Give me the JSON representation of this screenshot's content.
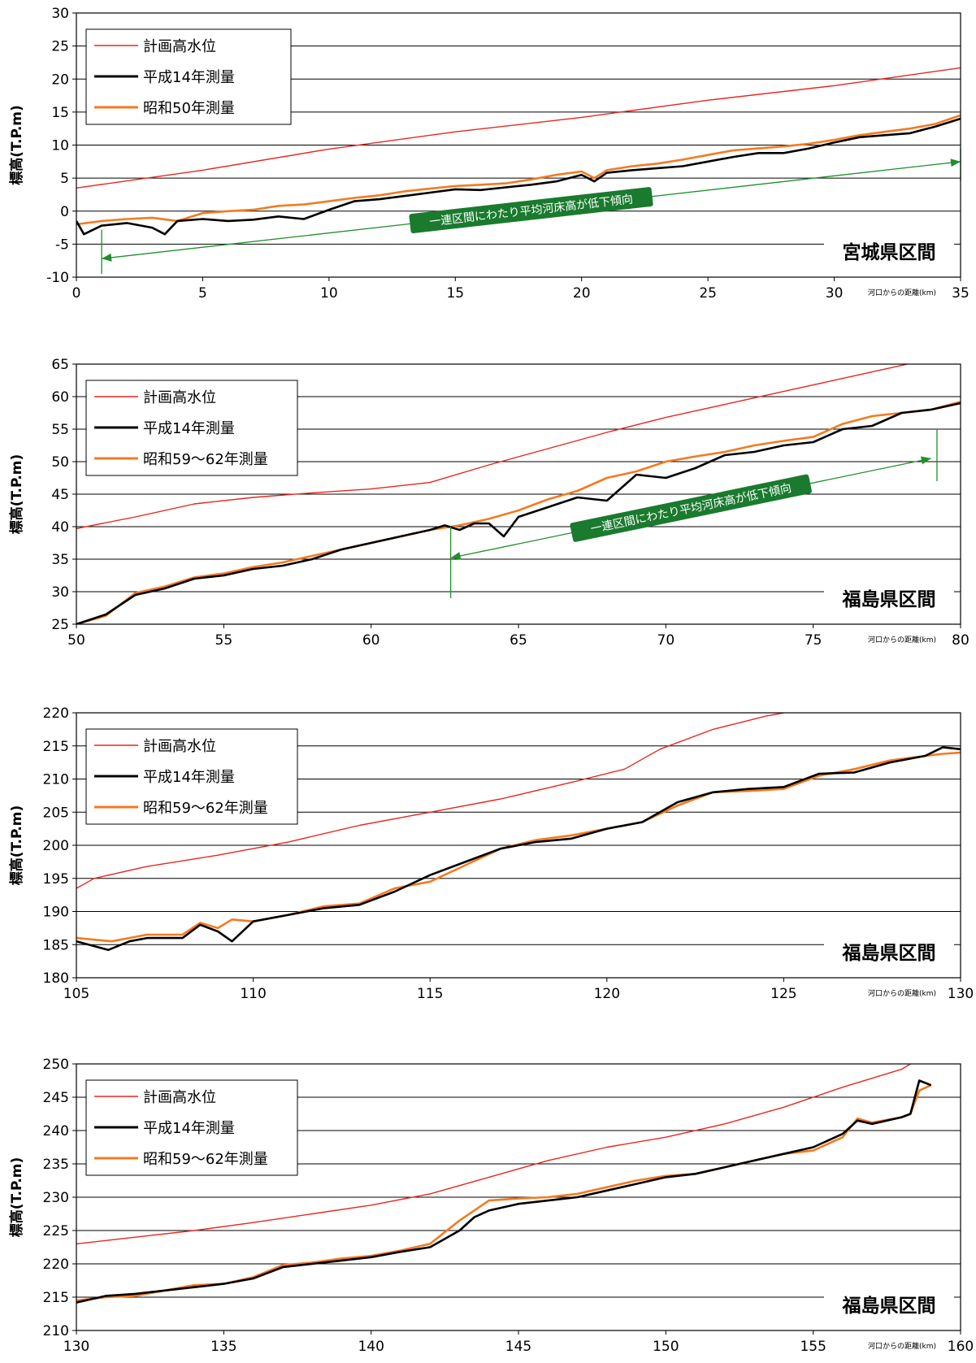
{
  "colors": {
    "plan": "#e8271f",
    "h14": "#000000",
    "old": "#f47a20",
    "arrow": "#1f8f2a",
    "annot_bg": "#1a7a2e"
  },
  "chart_data": [
    {
      "type": "line",
      "ylabel": "標高(T.P.m)",
      "xnote": "河口からの距離(km)",
      "xlim": [
        0,
        35
      ],
      "xticks": [
        0,
        5,
        10,
        15,
        20,
        25,
        30,
        35
      ],
      "ylim": [
        -10,
        30
      ],
      "yticks": [
        -10,
        -5,
        0,
        5,
        10,
        15,
        20,
        25,
        30
      ],
      "grid": "horizontal",
      "legend_position": "top-left",
      "region_label": "宮城県区間",
      "annotation": {
        "text": "一連区間にわたり平均河床高が低下傾向",
        "arrow_from": [
          35,
          7.5
        ],
        "arrow_to": [
          1,
          -7.2
        ],
        "markers": [
          1,
          35
        ]
      },
      "series": [
        {
          "name": "計画高水位",
          "key": "plan",
          "x": [
            0,
            5,
            10,
            15,
            20,
            25,
            30,
            35
          ],
          "y": [
            3.5,
            6.2,
            9.4,
            12.0,
            14.2,
            16.8,
            19.0,
            21.7
          ]
        },
        {
          "name": "平成14年測量",
          "key": "h14",
          "x": [
            0,
            0.3,
            1,
            2,
            3,
            3.5,
            4,
            5,
            6,
            7,
            8,
            9,
            10,
            11,
            12,
            13,
            14,
            15,
            16,
            17,
            18,
            19,
            20,
            20.5,
            21,
            22,
            23,
            24,
            25,
            26,
            27,
            28,
            29,
            30,
            31,
            32,
            33,
            34,
            35
          ],
          "y": [
            -1.5,
            -3.5,
            -2.2,
            -1.8,
            -2.5,
            -3.5,
            -1.5,
            -1.2,
            -1.5,
            -1.3,
            -0.8,
            -1.2,
            0.2,
            1.5,
            1.8,
            2.3,
            2.8,
            3.3,
            3.2,
            3.6,
            4.0,
            4.5,
            5.5,
            4.5,
            5.8,
            6.2,
            6.5,
            6.8,
            7.5,
            8.2,
            8.8,
            8.8,
            9.5,
            10.4,
            11.2,
            11.5,
            11.8,
            12.8,
            14.0
          ]
        },
        {
          "name": "昭和50年測量",
          "key": "old",
          "x": [
            0,
            1,
            2,
            3,
            4,
            5,
            6,
            7,
            8,
            9,
            10,
            11,
            12,
            13,
            14,
            15,
            16,
            17,
            18,
            19,
            20,
            20.5,
            21,
            22,
            23,
            24,
            25,
            26,
            27,
            28,
            29,
            30,
            31,
            32,
            33,
            34,
            35
          ],
          "y": [
            -2.0,
            -1.5,
            -1.2,
            -1.0,
            -1.5,
            -0.3,
            0.0,
            0.2,
            0.8,
            1.0,
            1.5,
            2.0,
            2.4,
            3.0,
            3.4,
            3.8,
            4.0,
            4.2,
            4.8,
            5.5,
            6.0,
            5.0,
            6.2,
            6.8,
            7.2,
            7.8,
            8.5,
            9.2,
            9.5,
            9.8,
            10.2,
            10.8,
            11.5,
            12.0,
            12.5,
            13.2,
            14.5
          ]
        }
      ]
    },
    {
      "type": "line",
      "ylabel": "標高(T.P.m)",
      "xnote": "河口からの距離(km)",
      "xlim": [
        50,
        80
      ],
      "xticks": [
        50,
        55,
        60,
        65,
        70,
        75,
        80
      ],
      "ylim": [
        25,
        65
      ],
      "yticks": [
        25,
        30,
        35,
        40,
        45,
        50,
        55,
        60,
        65
      ],
      "grid": "horizontal",
      "legend_position": "top-left",
      "region_label": "福島県区間",
      "annotation": {
        "text": "一連区間にわたり平均河床高が低下傾向",
        "arrow_from": [
          79,
          50.5
        ],
        "arrow_to": [
          62.7,
          35.2
        ],
        "markers": [
          62.7,
          79.2
        ]
      },
      "series": [
        {
          "name": "計画高水位",
          "key": "plan",
          "x": [
            50,
            52,
            54,
            56,
            58,
            60,
            62,
            64,
            66,
            68,
            70,
            72,
            74,
            76,
            78,
            78.2
          ],
          "y": [
            39.7,
            41.5,
            43.5,
            44.5,
            45.2,
            45.8,
            46.8,
            49.5,
            52.0,
            54.5,
            56.8,
            58.8,
            60.8,
            62.8,
            64.8,
            65.0
          ]
        },
        {
          "name": "平成14年測量",
          "key": "h14",
          "x": [
            50,
            51,
            52,
            53,
            54,
            55,
            56,
            57,
            58,
            59,
            60,
            61,
            62,
            62.5,
            63,
            63.5,
            64,
            64.5,
            65,
            66,
            67,
            68,
            69,
            70,
            71,
            72,
            73,
            74,
            75,
            76,
            77,
            78,
            79,
            80
          ],
          "y": [
            25.0,
            26.5,
            29.5,
            30.5,
            32.0,
            32.5,
            33.5,
            34.0,
            35.0,
            36.5,
            37.5,
            38.5,
            39.5,
            40.2,
            39.5,
            40.5,
            40.5,
            38.5,
            41.5,
            43.0,
            44.5,
            44.0,
            48.0,
            47.5,
            49.0,
            51.0,
            51.5,
            52.5,
            53.0,
            55.0,
            55.5,
            57.5,
            58.0,
            59.0
          ]
        },
        {
          "name": "昭和59〜62年測量",
          "key": "old",
          "x": [
            50,
            51,
            52,
            53,
            54,
            55,
            56,
            57,
            58,
            59,
            60,
            61,
            62,
            63,
            64,
            65,
            66,
            67,
            68,
            69,
            70,
            71,
            72,
            73,
            74,
            75,
            76,
            77,
            78,
            79,
            80
          ],
          "y": [
            25.0,
            26.3,
            29.8,
            30.8,
            32.2,
            32.8,
            33.8,
            34.5,
            35.5,
            36.5,
            37.5,
            38.5,
            39.5,
            40.2,
            41.2,
            42.5,
            44.2,
            45.5,
            47.5,
            48.5,
            50.0,
            50.8,
            51.5,
            52.5,
            53.2,
            53.8,
            55.8,
            57.0,
            57.5,
            58.0,
            59.2
          ]
        }
      ]
    },
    {
      "type": "line",
      "ylabel": "標高(T.P.m)",
      "xnote": "河口からの距離(km)",
      "xlim": [
        105,
        130
      ],
      "xticks": [
        105,
        110,
        115,
        120,
        125,
        130
      ],
      "ylim": [
        180,
        220
      ],
      "yticks": [
        180,
        185,
        190,
        195,
        200,
        205,
        210,
        215,
        220
      ],
      "grid": "horizontal",
      "legend_position": "top-left",
      "region_label": "福島県区間",
      "series": [
        {
          "name": "計画高水位",
          "key": "plan",
          "x": [
            105,
            105.5,
            107,
            109,
            111,
            113,
            115,
            117,
            119,
            120.5,
            121.5,
            123,
            124.5,
            125
          ],
          "y": [
            193.5,
            195.0,
            196.8,
            198.5,
            200.5,
            203.0,
            205.0,
            207.0,
            209.5,
            211.5,
            214.5,
            217.5,
            219.5,
            220.0
          ]
        },
        {
          "name": "平成14年測量",
          "key": "h14",
          "x": [
            105,
            105.9,
            106.5,
            107,
            108,
            108.5,
            109,
            109.4,
            110,
            111,
            112,
            113,
            114,
            115,
            116,
            117,
            118,
            119,
            120,
            121,
            122,
            123,
            124,
            125,
            126,
            127,
            128,
            129,
            129.5,
            130
          ],
          "y": [
            185.5,
            184.2,
            185.5,
            186.0,
            186.0,
            188.0,
            187.0,
            185.5,
            188.5,
            189.5,
            190.5,
            191.0,
            193.0,
            195.5,
            197.5,
            199.5,
            200.5,
            201.0,
            202.5,
            203.5,
            206.5,
            208.0,
            208.5,
            208.8,
            210.8,
            211.0,
            212.5,
            213.5,
            214.8,
            214.5
          ]
        },
        {
          "name": "昭和59〜62年測量",
          "key": "old",
          "x": [
            105,
            106,
            107,
            108,
            108.5,
            109,
            109.4,
            110,
            111,
            112,
            113,
            114,
            115,
            116,
            117,
            118,
            119,
            120,
            121,
            122,
            123,
            124,
            125,
            126,
            127,
            128,
            129,
            129.5,
            130
          ],
          "y": [
            186.0,
            185.5,
            186.5,
            186.5,
            188.3,
            187.5,
            188.8,
            188.5,
            189.5,
            190.8,
            191.2,
            193.5,
            194.5,
            197.0,
            199.5,
            200.8,
            201.5,
            202.5,
            203.5,
            206.0,
            208.0,
            208.2,
            208.5,
            210.5,
            211.5,
            212.8,
            213.5,
            213.8,
            214.0
          ]
        }
      ]
    },
    {
      "type": "line",
      "ylabel": "標高(T.P.m)",
      "xnote": "河口からの距離(km)",
      "xlim": [
        130,
        160
      ],
      "xticks": [
        130,
        135,
        140,
        145,
        150,
        155,
        160
      ],
      "ylim": [
        210,
        250
      ],
      "yticks": [
        210,
        215,
        220,
        225,
        230,
        235,
        240,
        245,
        250
      ],
      "grid": "horizontal",
      "legend_position": "top-left",
      "region_label": "福島県区間",
      "series": [
        {
          "name": "計画高水位",
          "key": "plan",
          "x": [
            130,
            132,
            134,
            136,
            138,
            140,
            142,
            144,
            146,
            148,
            150,
            152,
            154,
            156,
            158,
            158.3
          ],
          "y": [
            223.0,
            224.0,
            225.0,
            226.2,
            227.5,
            228.8,
            230.5,
            233.0,
            235.5,
            237.5,
            239.0,
            241.0,
            243.5,
            246.5,
            249.2,
            250.0
          ]
        },
        {
          "name": "平成14年測量",
          "key": "h14",
          "x": [
            130,
            131,
            132,
            133,
            134,
            135,
            136,
            137,
            138,
            139,
            140,
            141,
            142,
            143,
            143.5,
            144,
            145,
            146,
            147,
            148,
            149,
            150,
            151,
            152,
            153,
            154,
            155,
            156,
            156.5,
            157,
            158,
            158.3,
            158.6,
            159
          ],
          "y": [
            214.2,
            215.2,
            215.5,
            216.0,
            216.5,
            217.0,
            217.8,
            219.5,
            220.0,
            220.5,
            221.0,
            221.8,
            222.5,
            225.0,
            227.0,
            228.0,
            229.0,
            229.5,
            230.0,
            231.0,
            232.0,
            233.0,
            233.5,
            234.5,
            235.5,
            236.5,
            237.5,
            239.5,
            241.5,
            241.0,
            242.0,
            242.5,
            247.5,
            246.8
          ]
        },
        {
          "name": "昭和59〜62年測量",
          "key": "old",
          "x": [
            130,
            131,
            132,
            133,
            134,
            135,
            136,
            137,
            138,
            139,
            140,
            141,
            142,
            143,
            144,
            145,
            146,
            147,
            148,
            149,
            150,
            151,
            152,
            153,
            154,
            155,
            156,
            156.5,
            157,
            158,
            158.3,
            158.6,
            159
          ],
          "y": [
            214.5,
            215.0,
            215.2,
            216.0,
            216.8,
            217.0,
            218.0,
            219.8,
            220.2,
            220.8,
            221.2,
            222.0,
            223.0,
            226.5,
            229.5,
            229.8,
            230.0,
            230.5,
            231.5,
            232.5,
            233.2,
            233.5,
            234.5,
            235.5,
            236.5,
            237.0,
            239.0,
            241.8,
            241.2,
            242.0,
            242.5,
            246.0,
            246.8
          ]
        }
      ]
    }
  ]
}
